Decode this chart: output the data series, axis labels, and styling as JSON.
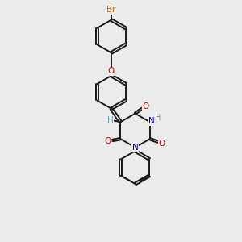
{
  "bg_color": "#ebebeb",
  "bond_color": "#1a1a1a",
  "N_color": "#0000cc",
  "O_color": "#cc0000",
  "Br_color": "#cc6600",
  "H_color": "#6699aa",
  "line_width": 1.4,
  "fig_w": 3.0,
  "fig_h": 3.0,
  "dpi": 100,
  "xlim": [
    0,
    10
  ],
  "ylim": [
    0,
    10
  ]
}
